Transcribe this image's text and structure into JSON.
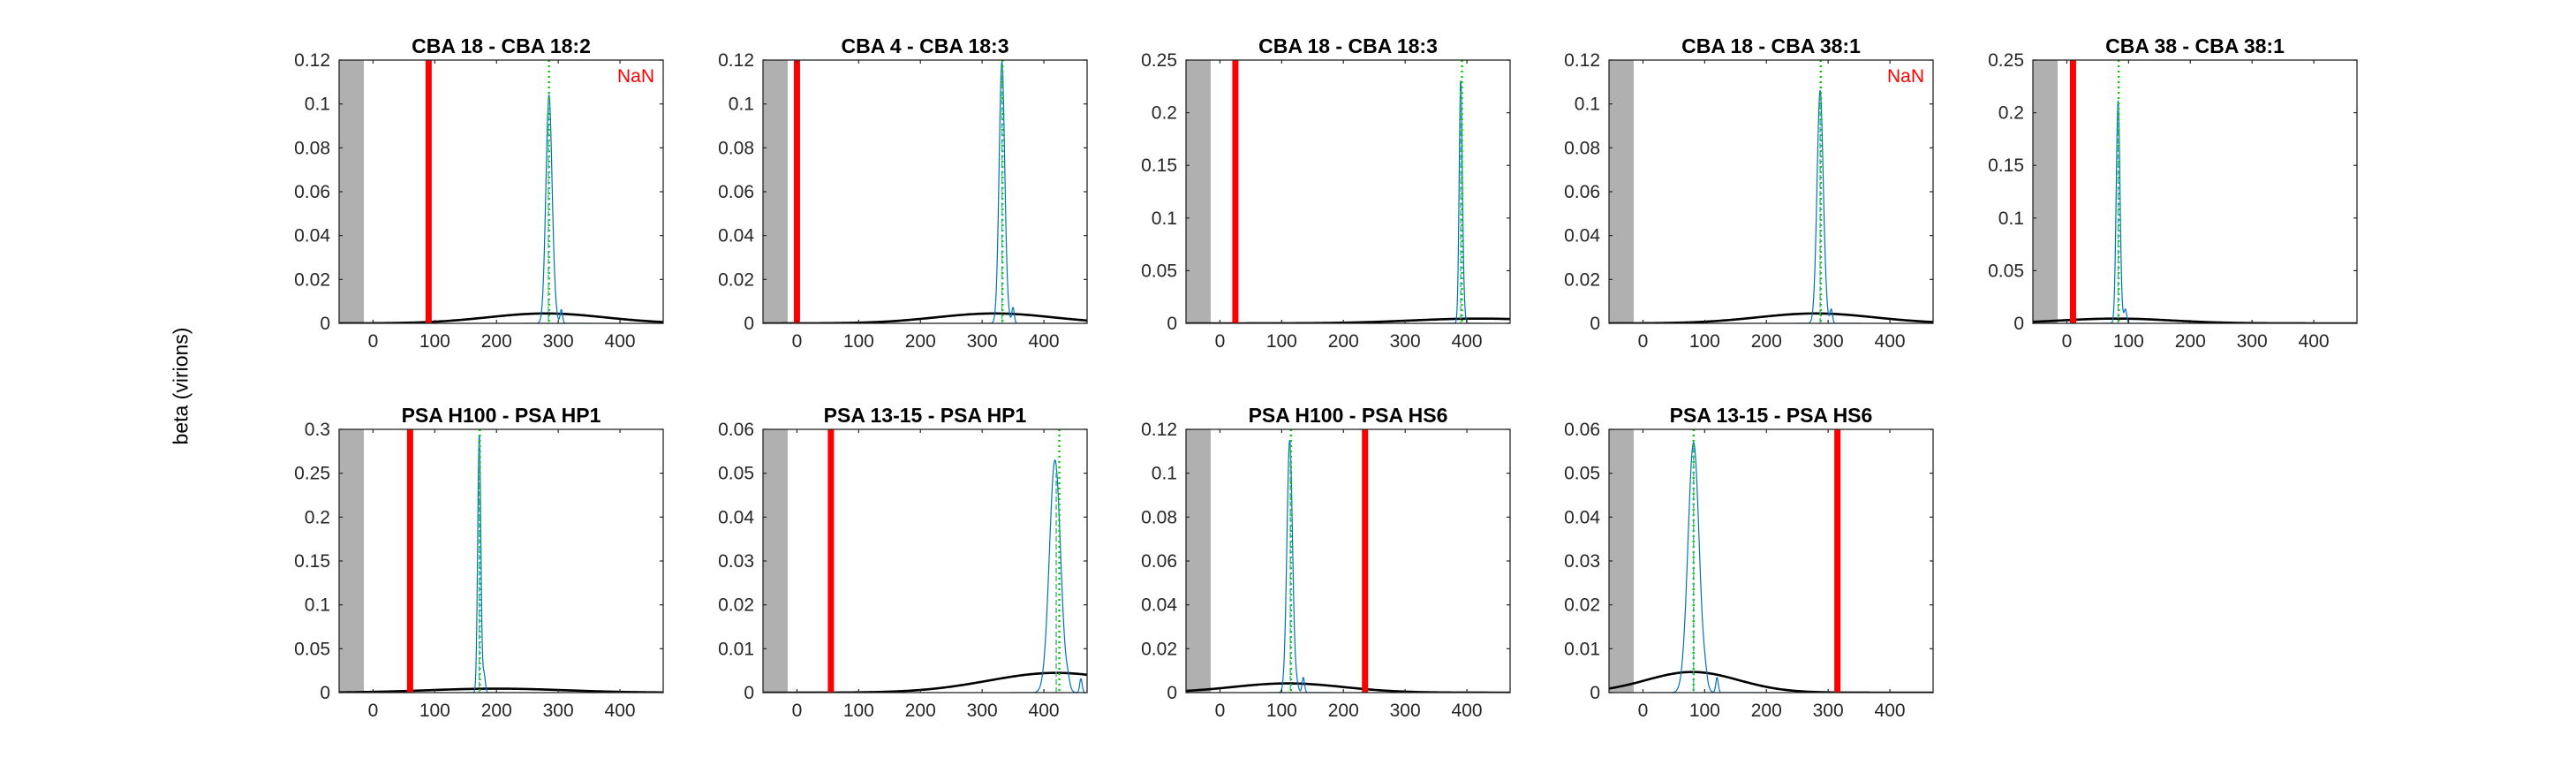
{
  "figure": {
    "ylabel": "beta (virions)"
  },
  "colors": {
    "posterior": "#0072BD",
    "prior": "#000000",
    "observed": "#FF0000",
    "mean": "#00CC00",
    "median": "#3CB48A",
    "shade": "#B0B0B0",
    "na_text": "#FF0000"
  },
  "chart_data": [
    {
      "type": "line",
      "title": "CBA 18 - CBA 18:2",
      "xlim": [
        -55,
        470
      ],
      "ylim": [
        0,
        0.12
      ],
      "xticks": [
        0,
        100,
        200,
        300,
        400
      ],
      "yticks": [
        0,
        0.02,
        0.04,
        0.06,
        0.08,
        0.1,
        0.12
      ],
      "grey_band": [
        -55,
        -15
      ],
      "observed_x": 90,
      "peak_x": 285,
      "peak_y": 0.104,
      "mean_x": 285,
      "median_x": 284,
      "spread": 5,
      "prior_mu": 280,
      "prior_sd": 95,
      "prior_peak": 0.0045,
      "tail_x": 305,
      "annotation": "NaN"
    },
    {
      "type": "line",
      "title": "CBA 4 - CBA 18:3",
      "xlim": [
        -55,
        470
      ],
      "ylim": [
        0,
        0.12
      ],
      "xticks": [
        0,
        100,
        200,
        300,
        400
      ],
      "yticks": [
        0,
        0.02,
        0.04,
        0.06,
        0.08,
        0.1,
        0.12
      ],
      "grey_band": [
        -55,
        -15
      ],
      "observed_x": 0,
      "peak_x": 332,
      "peak_y": 0.119,
      "mean_x": 333,
      "median_x": 332,
      "spread": 4.5,
      "prior_mu": 320,
      "prior_sd": 95,
      "prior_peak": 0.0045,
      "tail_x": 350,
      "annotation": ""
    },
    {
      "type": "line",
      "title": "CBA 18 - CBA 18:3",
      "xlim": [
        -55,
        470
      ],
      "ylim": [
        0,
        0.25
      ],
      "xticks": [
        0,
        100,
        200,
        300,
        400
      ],
      "yticks": [
        0,
        0.05,
        0.1,
        0.15,
        0.2,
        0.25
      ],
      "grey_band": [
        -55,
        -15
      ],
      "observed_x": 25,
      "peak_x": 390,
      "peak_y": 0.225,
      "mean_x": 392,
      "median_x": 390,
      "spread": 2.5,
      "prior_mu": 420,
      "prior_sd": 110,
      "prior_peak": 0.0045,
      "tail_x": 395,
      "annotation": ""
    },
    {
      "type": "line",
      "title": "CBA 18 - CBA 38:1",
      "xlim": [
        -55,
        470
      ],
      "ylim": [
        0,
        0.12
      ],
      "xticks": [
        0,
        100,
        200,
        300,
        400
      ],
      "yticks": [
        0,
        0.02,
        0.04,
        0.06,
        0.08,
        0.1,
        0.12
      ],
      "grey_band": [
        -55,
        -15
      ],
      "observed_x": null,
      "peak_x": 287,
      "peak_y": 0.106,
      "mean_x": 288,
      "median_x": 287,
      "spread": 5,
      "prior_mu": 280,
      "prior_sd": 95,
      "prior_peak": 0.0045,
      "tail_x": 305,
      "annotation": "NaN"
    },
    {
      "type": "line",
      "title": "CBA 38 - CBA 38:1",
      "xlim": [
        -55,
        470
      ],
      "ylim": [
        0,
        0.25
      ],
      "xticks": [
        0,
        100,
        200,
        300,
        400
      ],
      "yticks": [
        0,
        0.05,
        0.1,
        0.15,
        0.2,
        0.25
      ],
      "grey_band": [
        -55,
        -15
      ],
      "observed_x": 10,
      "peak_x": 83,
      "peak_y": 0.21,
      "mean_x": 84,
      "median_x": 83,
      "spread": 3,
      "prior_mu": 80,
      "prior_sd": 90,
      "prior_peak": 0.0045,
      "tail_x": 95,
      "annotation": ""
    },
    {
      "type": "line",
      "title": "PSA H100 - PSA HP1",
      "xlim": [
        -55,
        470
      ],
      "ylim": [
        0,
        0.3
      ],
      "xticks": [
        0,
        100,
        200,
        300,
        400
      ],
      "yticks": [
        0,
        0.05,
        0.1,
        0.15,
        0.2,
        0.25,
        0.3
      ],
      "grey_band": [
        -55,
        -15
      ],
      "observed_x": 60,
      "peak_x": 172,
      "peak_y": 0.29,
      "mean_x": 173,
      "median_x": 172,
      "spread": 2.5,
      "prior_mu": 200,
      "prior_sd": 110,
      "prior_peak": 0.0045,
      "tail_x": 180,
      "annotation": ""
    },
    {
      "type": "line",
      "title": "PSA 13-15 - PSA HP1",
      "xlim": [
        -55,
        470
      ],
      "ylim": [
        0,
        0.06
      ],
      "xticks": [
        0,
        100,
        200,
        300,
        400
      ],
      "yticks": [
        0,
        0.01,
        0.02,
        0.03,
        0.04,
        0.05,
        0.06
      ],
      "grey_band": [
        -55,
        -15
      ],
      "observed_x": 55,
      "peak_x": 418,
      "peak_y": 0.053,
      "mean_x": 425,
      "median_x": 420,
      "spread": 9,
      "prior_mu": 420,
      "prior_sd": 110,
      "prior_peak": 0.0045,
      "tail_x": 460,
      "annotation": ""
    },
    {
      "type": "line",
      "title": "PSA H100 - PSA HS6",
      "xlim": [
        -55,
        470
      ],
      "ylim": [
        0,
        0.12
      ],
      "xticks": [
        0,
        100,
        200,
        300,
        400
      ],
      "yticks": [
        0,
        0.02,
        0.04,
        0.06,
        0.08,
        0.1,
        0.12
      ],
      "grey_band": [
        -55,
        -15
      ],
      "observed_x": 235,
      "peak_x": 113,
      "peak_y": 0.115,
      "mean_x": 115,
      "median_x": 114,
      "spread": 4.5,
      "prior_mu": 110,
      "prior_sd": 90,
      "prior_peak": 0.0042,
      "tail_x": 135,
      "annotation": ""
    },
    {
      "type": "line",
      "title": "PSA 13-15 - PSA HS6",
      "xlim": [
        -55,
        470
      ],
      "ylim": [
        0,
        0.06
      ],
      "xticks": [
        0,
        100,
        200,
        300,
        400
      ],
      "yticks": [
        0,
        0.01,
        0.02,
        0.03,
        0.04,
        0.05,
        0.06
      ],
      "grey_band": [
        -55,
        -15
      ],
      "observed_x": 315,
      "peak_x": 82,
      "peak_y": 0.057,
      "mean_x": 82,
      "median_x": 82,
      "spread": 9,
      "prior_mu": 80,
      "prior_sd": 75,
      "prior_peak": 0.0047,
      "tail_x": 120,
      "annotation": ""
    }
  ]
}
